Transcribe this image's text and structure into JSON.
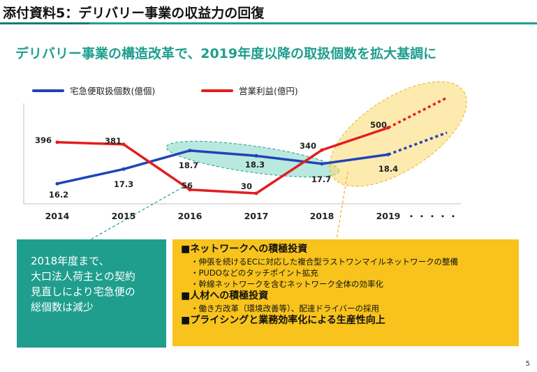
{
  "header": {
    "title": "添付資料5：デリバリー事業の収益力の回復",
    "subtitle": "デリバリー事業の構造改革で、2019年度以降の取扱個数を拡大基調に"
  },
  "chart_data": {
    "type": "line",
    "categories": [
      "2014",
      "2015",
      "2016",
      "2017",
      "2018",
      "2019"
    ],
    "x_trailing_label": "・・・・・",
    "series": [
      {
        "name": "宅急便取扱個数(億個)",
        "color": "#1f44b8",
        "values": [
          16.2,
          17.3,
          18.7,
          18.3,
          17.7,
          18.4
        ],
        "labels": [
          "16.2",
          "17.3",
          "18.7",
          "18.3",
          "17.7",
          "18.4"
        ],
        "trend": "up"
      },
      {
        "name": "営業利益(億円)",
        "color": "#e21e1e",
        "values": [
          396,
          381,
          56,
          30,
          340,
          500
        ],
        "labels": [
          "396",
          "381",
          "56",
          "30",
          "340",
          "500"
        ],
        "trend": "up"
      }
    ],
    "legend_position": "top",
    "gridlines": false
  },
  "colors": {
    "teal": "#1f9e8e",
    "yellow": "#f7c31c",
    "blue": "#1f44b8",
    "red": "#e21e1e"
  },
  "left_box": {
    "lines": [
      "2018年度まで、",
      "大口法人荷主との契約",
      "見直しにより宅急便の",
      "総個数は減少"
    ]
  },
  "right_box": {
    "h1": "■ネットワークへの積極投資",
    "b1": "・伸張を続けるECに対応した複合型ラストワンマイルネットワークの整備",
    "b2": "・PUDOなどのタッチポイント拡充",
    "b3": "・幹線ネットワークを含むネットワーク全体の効率化",
    "h2": "■人材への積極投資",
    "b4": "・働き方改革（環境改善等）、配達ドライバーの採用",
    "h3": "■プライシングと業務効率化による生産性向上"
  },
  "page_number": "5"
}
